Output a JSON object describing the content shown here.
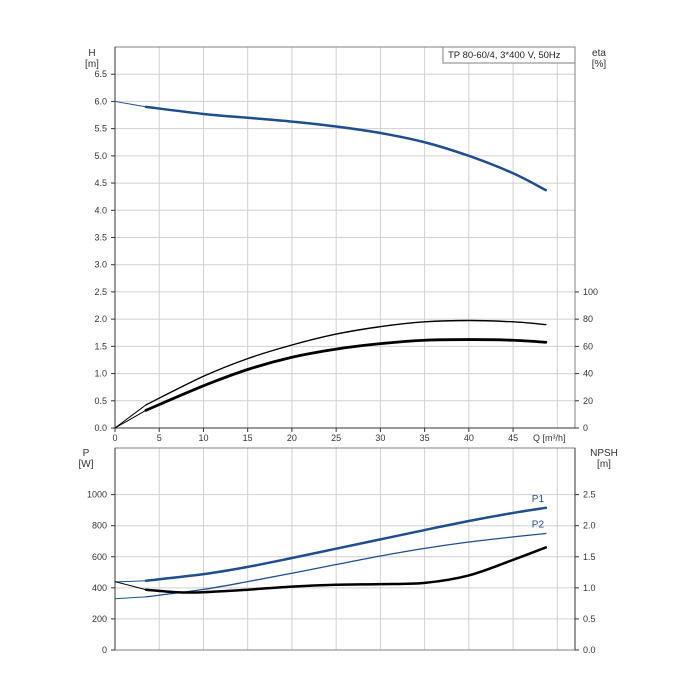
{
  "chart_data": [
    {
      "type": "line",
      "title": "TP 80-60/4, 3*400 V, 50Hz",
      "xlabel": "Q [m³/h]",
      "x_ticks": [
        "0",
        "5",
        "10",
        "15",
        "20",
        "25",
        "30",
        "35",
        "40",
        "45"
      ],
      "xlim": [
        0,
        52
      ],
      "ylabel_left": "H",
      "ylabel_left_unit": "[m]",
      "ylim_left": [
        0,
        7.0
      ],
      "y_ticks_left": [
        "0.0",
        "0.5",
        "1.0",
        "1.5",
        "2.0",
        "2.5",
        "3.0",
        "3.5",
        "4.0",
        "4.5",
        "5.0",
        "5.5",
        "6.0",
        "6.5"
      ],
      "ylabel_right": "eta",
      "ylabel_right_unit": "[%]",
      "ylim_right": [
        0,
        280
      ],
      "y_ticks_right": [
        "0",
        "20",
        "40",
        "60",
        "80",
        "100"
      ],
      "grid": true,
      "series": [
        {
          "axis": "left",
          "color": "#1f4e8c",
          "x": [
            0,
            3.5,
            10,
            15,
            20,
            25,
            30,
            35,
            40,
            45,
            48.7
          ],
          "y": [
            6.0,
            5.9,
            5.77,
            5.7,
            5.63,
            5.54,
            5.42,
            5.25,
            5.0,
            4.68,
            4.37
          ]
        },
        {
          "axis": "right",
          "color": "#000000",
          "x": [
            0,
            3.5,
            10,
            15,
            20,
            25,
            30,
            35,
            40,
            45,
            48.7
          ],
          "y": [
            0,
            17,
            38,
            51,
            61,
            69,
            74.5,
            78,
            79,
            78,
            76
          ]
        },
        {
          "axis": "right",
          "color": "#000000",
          "x": [
            0,
            3.5,
            10,
            15,
            20,
            25,
            30,
            35,
            40,
            45,
            48.7
          ],
          "y": [
            0,
            13,
            31,
            43,
            52,
            58,
            62,
            64.5,
            65,
            64.5,
            63
          ]
        }
      ]
    },
    {
      "type": "line",
      "xlim": [
        0,
        52
      ],
      "ylabel_left": "P",
      "ylabel_left_unit": "[W]",
      "ylim_left": [
        0,
        1300
      ],
      "y_ticks_left": [
        "0",
        "200",
        "400",
        "600",
        "800",
        "1000"
      ],
      "ylabel_right": "NPSH",
      "ylabel_right_unit": "[m]",
      "ylim_right": [
        0,
        3.25
      ],
      "y_ticks_right": [
        "0.0",
        "0.5",
        "1.0",
        "1.5",
        "2.0",
        "2.5"
      ],
      "grid": true,
      "series": [
        {
          "name": "P1",
          "axis": "left",
          "color": "#1f4e8c",
          "x": [
            0,
            3.5,
            10,
            15,
            20,
            25,
            30,
            35,
            40,
            45,
            48.7
          ],
          "y": [
            438,
            446,
            488,
            535,
            592,
            652,
            712,
            772,
            830,
            882,
            915
          ]
        },
        {
          "name": "P2",
          "axis": "left",
          "color": "#1f4e8c",
          "x": [
            0,
            3.5,
            10,
            15,
            20,
            25,
            30,
            35,
            40,
            45,
            48.7
          ],
          "y": [
            330,
            342,
            390,
            440,
            494,
            550,
            605,
            654,
            695,
            728,
            750
          ]
        },
        {
          "axis": "right",
          "color": "#000000",
          "x": [
            0,
            3.5,
            7,
            10,
            15,
            20,
            25,
            30,
            35,
            40,
            45,
            48.7
          ],
          "y": [
            1.1,
            0.97,
            0.93,
            0.93,
            0.97,
            1.02,
            1.05,
            1.06,
            1.08,
            1.2,
            1.45,
            1.65
          ]
        }
      ]
    }
  ]
}
